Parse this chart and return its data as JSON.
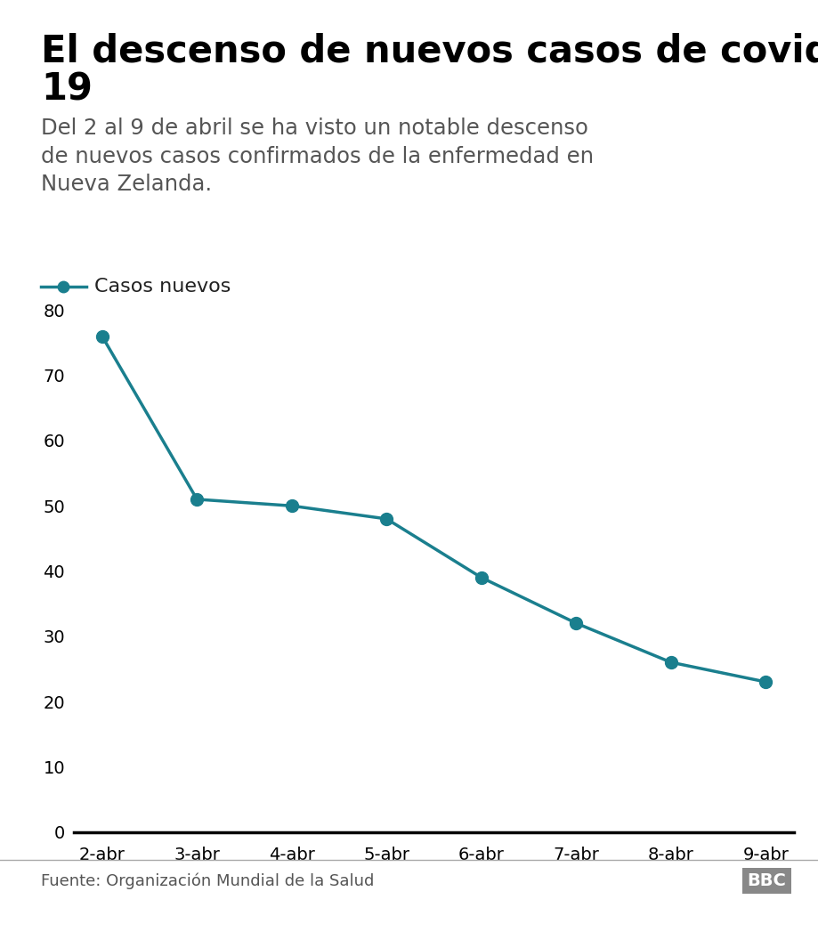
{
  "title_line1": "El descenso de nuevos casos de covid-",
  "title_line2": "19",
  "subtitle": "Del 2 al 9 de abril se ha visto un notable descenso\nde nuevos casos confirmados de la enfermedad en\nNueva Zelanda.",
  "legend_label": "Casos nuevos",
  "categories": [
    "2-abr",
    "3-abr",
    "4-abr",
    "5-abr",
    "6-abr",
    "7-abr",
    "8-abr",
    "9-abr"
  ],
  "values": [
    76,
    51,
    50,
    48,
    39,
    32,
    26,
    23
  ],
  "line_color": "#1a7f8e",
  "marker_color": "#1a7f8e",
  "ylim": [
    0,
    80
  ],
  "yticks": [
    0,
    10,
    20,
    30,
    40,
    50,
    60,
    70,
    80
  ],
  "footer_text": "Fuente: Organización Mundial de la Salud",
  "footer_logo": "BBC",
  "background_color": "#ffffff",
  "title_fontsize": 30,
  "subtitle_fontsize": 17.5,
  "axis_fontsize": 14,
  "legend_fontsize": 16,
  "footer_fontsize": 13
}
